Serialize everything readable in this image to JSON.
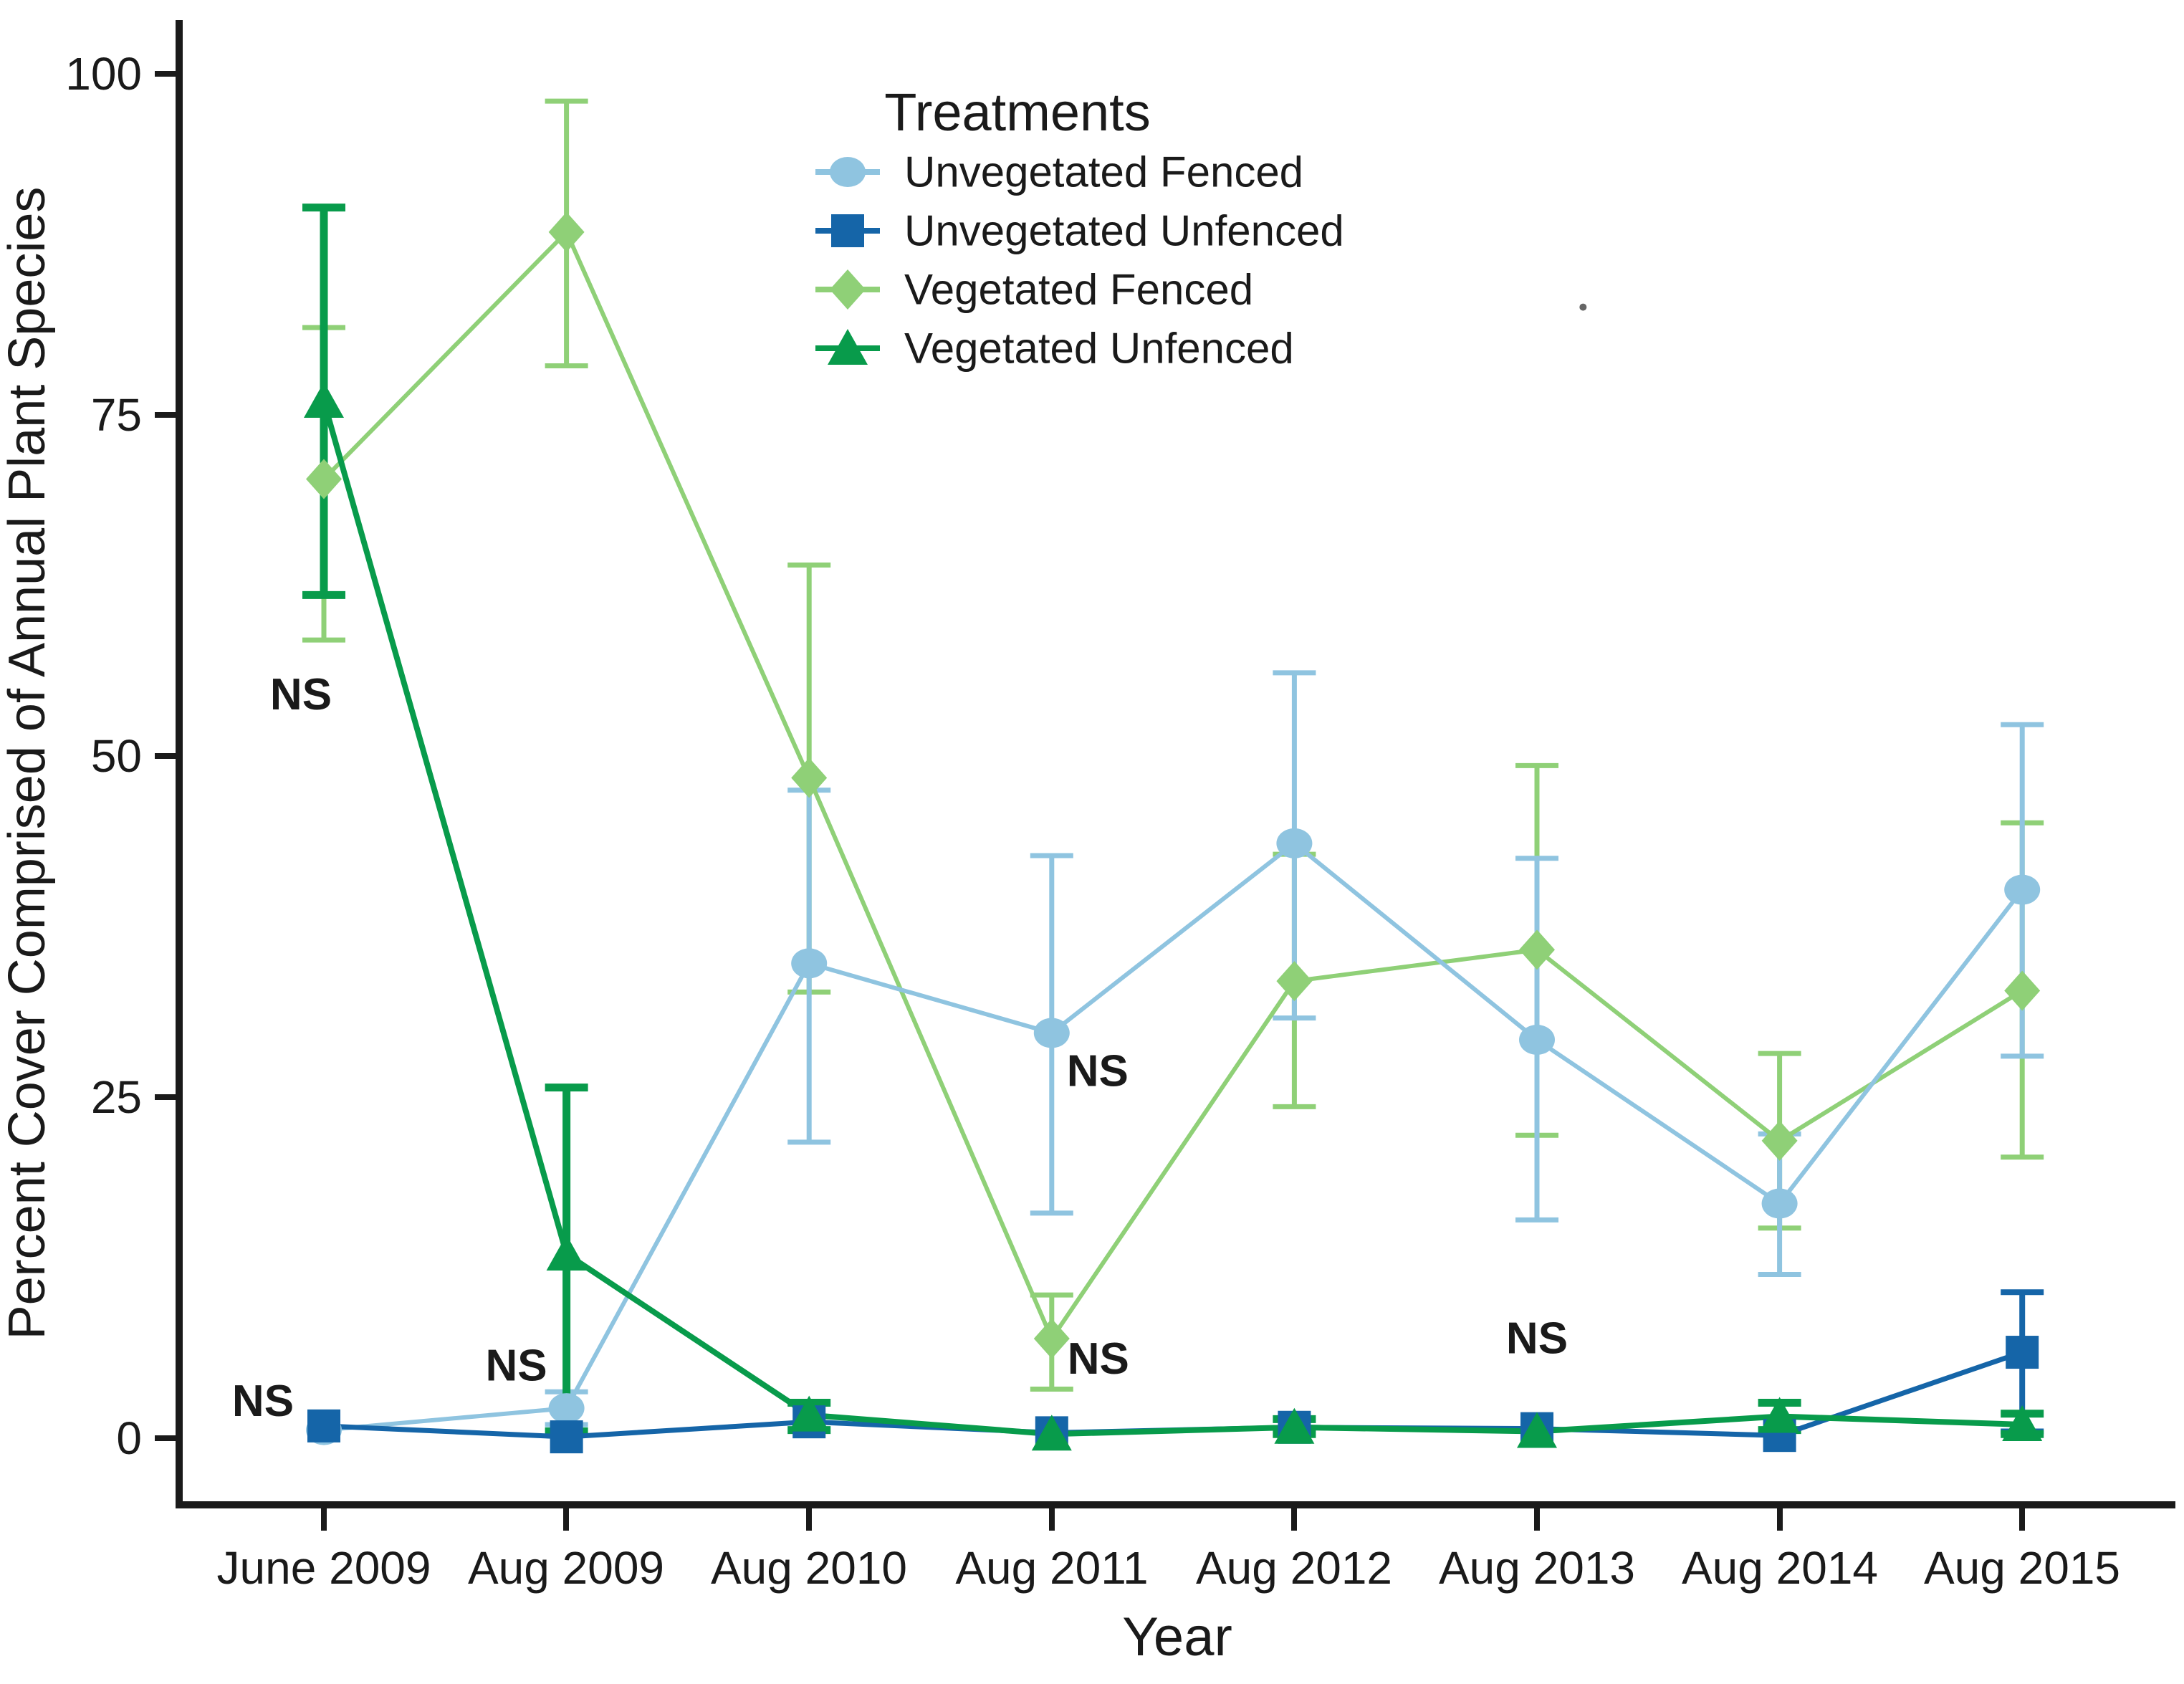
{
  "chart_data": {
    "type": "line",
    "title": "",
    "xlabel": "Year",
    "ylabel": "Percent Cover Comprised of Annual Plant Species",
    "categories": [
      "June 2009",
      "Aug 2009",
      "Aug 2010",
      "Aug 2011",
      "Aug 2012",
      "Aug 2013",
      "Aug 2014",
      "Aug 2015"
    ],
    "ytick_labels": [
      "0",
      "25",
      "50",
      "75",
      "100"
    ],
    "yticks": [
      0,
      25,
      50,
      75,
      100
    ],
    "ylim": [
      -5,
      104
    ],
    "grid": false,
    "legend": {
      "title": "Treatments",
      "position": "top-center-inside"
    },
    "colors": {
      "light_blue": "#8FC4E0",
      "dark_blue": "#1565A8",
      "light_green": "#8FD077",
      "dark_green": "#089B4B",
      "axis": "#1a1a1a"
    },
    "series": [
      {
        "name": "Vegetated Fenced",
        "marker": "diamond",
        "color": "#8FD077",
        "values": [
          70.3,
          88.4,
          48.4,
          7.3,
          33.5,
          35.8,
          21.8,
          32.8
        ],
        "err_low": [
          58.5,
          78.6,
          32.7,
          3.6,
          24.3,
          22.2,
          15.4,
          20.6
        ],
        "err_high": [
          81.4,
          98.0,
          64.0,
          10.5,
          42.8,
          49.3,
          28.2,
          45.1
        ]
      },
      {
        "name": "Unvegetated Fenced",
        "marker": "circle",
        "color": "#8FC4E0",
        "values": [
          0.6,
          2.2,
          34.8,
          29.7,
          43.6,
          29.2,
          17.2,
          40.2
        ],
        "err_low": [
          null,
          1.0,
          21.7,
          16.5,
          30.8,
          16.0,
          12.0,
          28.0
        ],
        "err_high": [
          null,
          3.4,
          47.5,
          42.7,
          56.1,
          42.5,
          22.3,
          52.3
        ]
      },
      {
        "name": "Unvegetated Unfenced",
        "marker": "square",
        "color": "#1565A8",
        "values": [
          0.9,
          0.1,
          1.2,
          0.4,
          0.8,
          0.7,
          0.2,
          6.3
        ],
        "err_low": [
          null,
          null,
          null,
          null,
          null,
          null,
          null,
          0.5
        ],
        "err_high": [
          null,
          null,
          null,
          null,
          null,
          null,
          null,
          10.7
        ]
      },
      {
        "name": "Vegetated Unfenced",
        "marker": "triangle",
        "color": "#089B4B",
        "values": [
          76.0,
          13.5,
          1.7,
          0.3,
          0.8,
          0.5,
          1.6,
          1.0
        ],
        "err_low": [
          61.8,
          0.5,
          0.6,
          null,
          0.3,
          null,
          0.6,
          0.3
        ],
        "err_high": [
          90.2,
          25.7,
          2.6,
          null,
          1.4,
          null,
          2.6,
          1.8
        ]
      }
    ],
    "legend_order": [
      "Unvegetated Fenced",
      "Unvegetated Unfenced",
      "Vegetated Fenced",
      "Vegetated Unfenced"
    ],
    "annotations": [
      {
        "text": "NS",
        "color": "#089B4B",
        "cat": 0,
        "value": 54.5,
        "dx": -32
      },
      {
        "text": "NS",
        "color": "#1565A8",
        "cat": 0,
        "value": 2.7,
        "dx": -85
      },
      {
        "text": "NS",
        "color": "#1565A8",
        "cat": 1,
        "value": 5.3,
        "dx": -70
      },
      {
        "text": "NS",
        "color": "#1565A8",
        "cat": 3,
        "value": 26.9,
        "dx": 64
      },
      {
        "text": "NS",
        "color": "#089B4B",
        "cat": 3,
        "value": 5.8,
        "dx": 65
      },
      {
        "text": "NS",
        "color": "#1565A8",
        "cat": 5,
        "value": 7.3,
        "dx": 0
      }
    ],
    "stray_mark": {
      "cat": 5.19,
      "value": 82.9
    }
  }
}
